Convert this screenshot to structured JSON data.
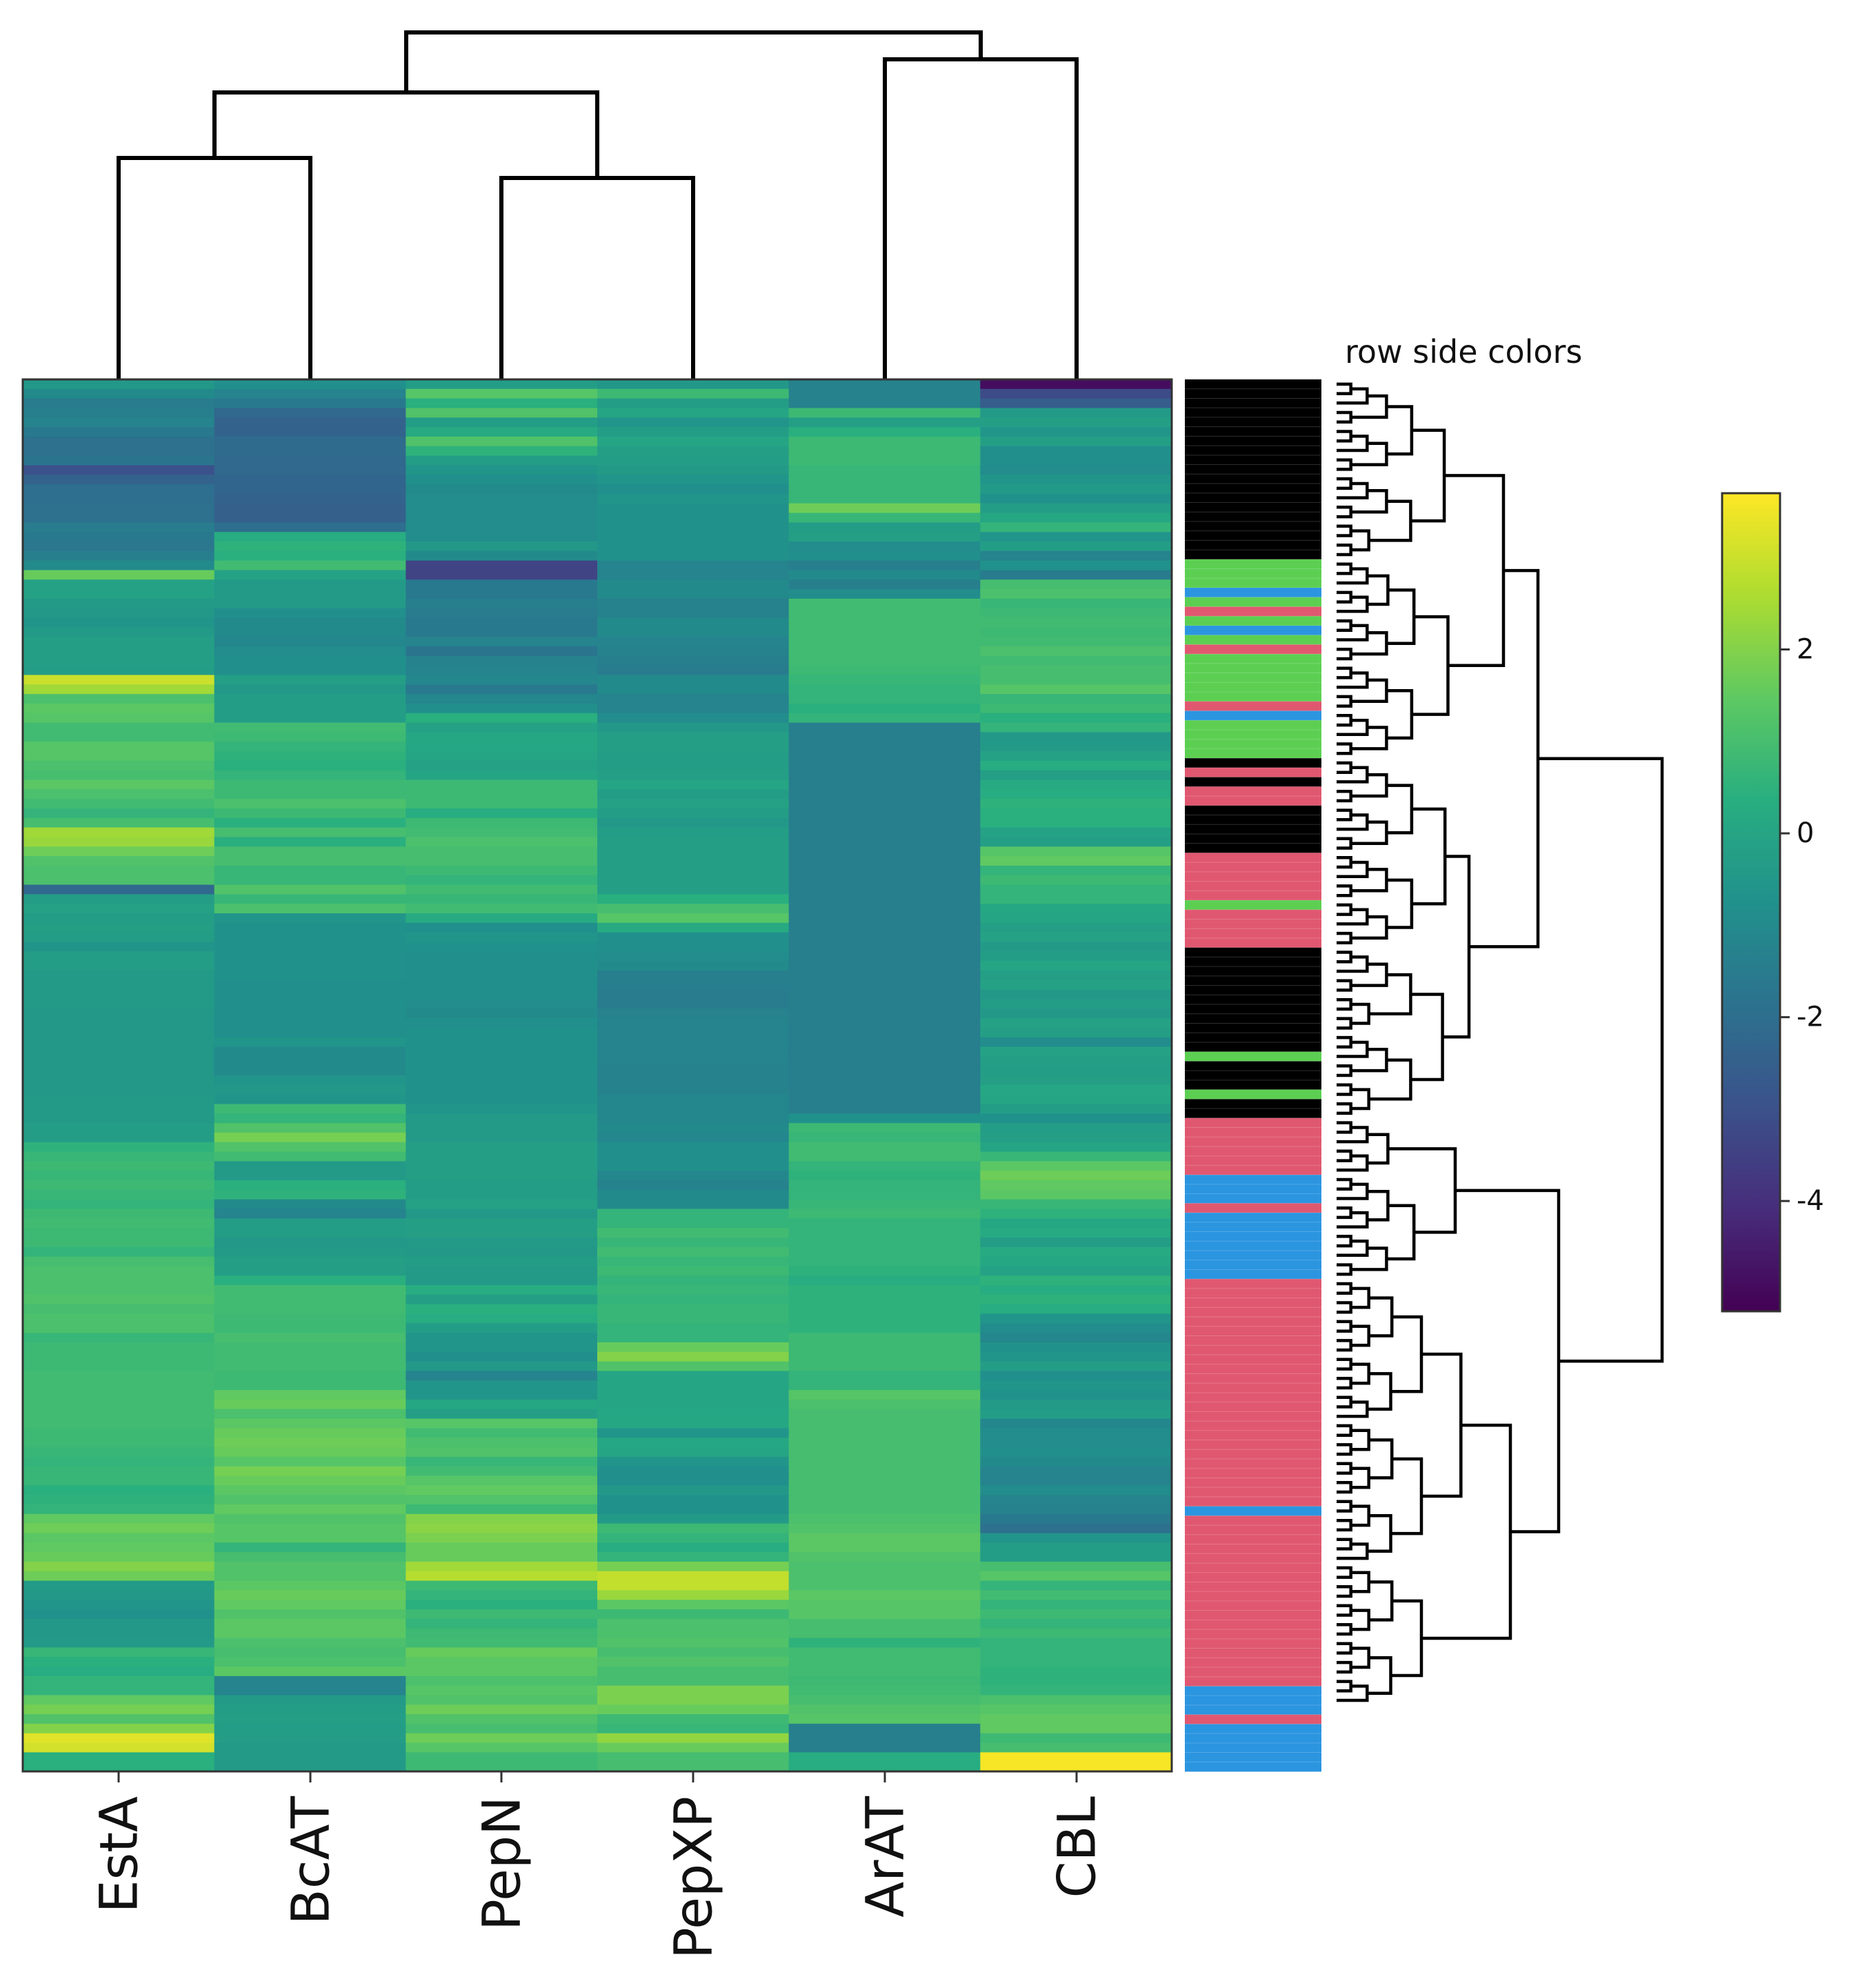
{
  "chart_data": {
    "type": "heatmap",
    "title": "",
    "columns": [
      "EstA",
      "BcAT",
      "PepN",
      "PepXP",
      "ArAT",
      "CBL"
    ],
    "colorbar": {
      "ticks": [
        2,
        0,
        -2,
        -4
      ],
      "tick_labels": [
        "2",
        "0",
        "-2",
        "-4"
      ],
      "range": [
        -5.2,
        3.7
      ],
      "colormap": "viridis"
    },
    "row_side_colors_label": "row side colors",
    "row_side_palette": {
      "black": "#000000",
      "green": "#5ccf52",
      "blue": "#2b95e0",
      "red": "#e05870"
    },
    "row_side_colors": [
      "black",
      "black",
      "black",
      "black",
      "black",
      "black",
      "black",
      "black",
      "black",
      "black",
      "black",
      "black",
      "black",
      "black",
      "black",
      "black",
      "black",
      "black",
      "black",
      "green",
      "green",
      "green",
      "blue",
      "green",
      "red",
      "green",
      "blue",
      "green",
      "red",
      "green",
      "green",
      "green",
      "green",
      "green",
      "red",
      "blue",
      "green",
      "green",
      "green",
      "green",
      "black",
      "red",
      "black",
      "red",
      "red",
      "black",
      "black",
      "black",
      "black",
      "black",
      "red",
      "red",
      "red",
      "red",
      "red",
      "green",
      "red",
      "red",
      "red",
      "red",
      "black",
      "black",
      "black",
      "black",
      "black",
      "black",
      "black",
      "black",
      "black",
      "black",
      "black",
      "green",
      "black",
      "black",
      "black",
      "green",
      "black",
      "black",
      "red",
      "red",
      "red",
      "red",
      "red",
      "red",
      "blue",
      "blue",
      "blue",
      "red",
      "blue",
      "blue",
      "blue",
      "blue",
      "blue",
      "blue",
      "blue",
      "red",
      "red",
      "red",
      "red",
      "red",
      "red",
      "red",
      "red",
      "red",
      "red",
      "red",
      "red",
      "red",
      "red",
      "red",
      "red",
      "red",
      "red",
      "red",
      "red",
      "red",
      "red",
      "red",
      "red",
      "blue",
      "red",
      "red",
      "red",
      "red",
      "red",
      "red",
      "red",
      "red",
      "red",
      "red",
      "red",
      "red",
      "red",
      "red",
      "red",
      "red",
      "red",
      "red",
      "blue",
      "blue",
      "blue",
      "red",
      "blue",
      "blue",
      "blue",
      "blue",
      "blue"
    ],
    "row_values": [
      [
        -0.5,
        -0.8,
        -0.3,
        -0.5,
        -1.3,
        -4.9
      ],
      [
        -1.0,
        -1.2,
        1.3,
        0.8,
        -1.3,
        -3.2
      ],
      [
        -1.5,
        -1.6,
        0.4,
        -0.3,
        -1.3,
        -2.6
      ],
      [
        -1.4,
        -2.2,
        1.2,
        0.0,
        0.8,
        -0.4
      ],
      [
        -1.2,
        -2.4,
        -0.3,
        -0.6,
        -0.2,
        -0.2
      ],
      [
        -1.6,
        -2.4,
        0.2,
        -0.3,
        0.4,
        -0.6
      ],
      [
        -1.9,
        -2.1,
        1.2,
        0.0,
        0.8,
        -0.2
      ],
      [
        -1.9,
        -2.1,
        0.5,
        -0.2,
        0.8,
        -0.8
      ],
      [
        -1.8,
        -2.2,
        -0.3,
        -0.3,
        0.8,
        -0.8
      ],
      [
        -3.0,
        -2.2,
        -0.6,
        -0.4,
        0.7,
        -0.9
      ],
      [
        -2.4,
        -2.3,
        -0.8,
        -0.6,
        0.7,
        -0.6
      ],
      [
        -2.0,
        -2.3,
        -1.0,
        -0.8,
        0.7,
        -0.4
      ],
      [
        -2.0,
        -2.4,
        -0.9,
        -0.6,
        0.7,
        -0.7
      ],
      [
        -1.9,
        -2.5,
        -0.9,
        -0.7,
        1.7,
        -0.3
      ],
      [
        -1.9,
        -2.5,
        -0.9,
        -0.7,
        0.7,
        0.1
      ],
      [
        -1.5,
        -2.0,
        -0.9,
        -0.7,
        -0.3,
        0.6
      ],
      [
        -1.6,
        0.3,
        -0.9,
        -0.7,
        -0.2,
        -0.6
      ],
      [
        -1.7,
        0.5,
        -0.5,
        -0.7,
        -0.9,
        -0.3
      ],
      [
        -1.4,
        0.4,
        -1.0,
        -0.7,
        -0.8,
        -1.2
      ],
      [
        -1.0,
        0.9,
        -3.4,
        -1.2,
        -1.4,
        -0.7
      ],
      [
        1.6,
        -0.1,
        -3.4,
        -1.2,
        -1.0,
        -1.5
      ],
      [
        -0.1,
        -0.4,
        -1.6,
        -1.0,
        -1.4,
        1.0
      ],
      [
        -0.1,
        -0.4,
        -1.6,
        -1.0,
        -0.9,
        1.1
      ],
      [
        -0.4,
        -0.4,
        -1.4,
        -1.3,
        0.9,
        0.7
      ],
      [
        -0.5,
        -0.8,
        -1.5,
        -1.3,
        0.9,
        0.8
      ],
      [
        -0.6,
        -1.0,
        -1.6,
        -1.0,
        0.9,
        0.9
      ],
      [
        -0.4,
        -1.0,
        -1.6,
        -1.0,
        0.9,
        0.8
      ],
      [
        -0.2,
        -1.1,
        -1.2,
        -1.2,
        0.9,
        0.9
      ],
      [
        -0.2,
        -0.9,
        -1.8,
        -1.3,
        0.9,
        1.1
      ],
      [
        -0.2,
        -0.8,
        -1.3,
        -1.4,
        0.9,
        0.9
      ],
      [
        -0.3,
        -0.8,
        -1.2,
        -1.5,
        0.8,
        1.0
      ],
      [
        3.0,
        -0.2,
        -1.1,
        -1.0,
        0.7,
        1.0
      ],
      [
        2.4,
        -0.5,
        -1.6,
        -1.0,
        0.6,
        1.3
      ],
      [
        1.1,
        -0.3,
        -1.1,
        -1.2,
        0.6,
        0.7
      ],
      [
        1.4,
        -0.3,
        -0.8,
        -1.2,
        0.4,
        0.8
      ],
      [
        1.3,
        -0.3,
        0.4,
        -0.9,
        0.6,
        0.4
      ],
      [
        0.9,
        0.9,
        -0.1,
        -0.5,
        -1.4,
        0.6
      ],
      [
        0.9,
        0.8,
        0.1,
        -0.2,
        -1.4,
        -0.5
      ],
      [
        1.3,
        0.6,
        0.1,
        -0.2,
        -1.4,
        -0.4
      ],
      [
        1.3,
        0.5,
        0.0,
        -0.3,
        -1.4,
        -0.1
      ],
      [
        1.1,
        0.4,
        -0.1,
        -0.3,
        -1.4,
        0.3
      ],
      [
        1.0,
        0.6,
        0.0,
        -0.2,
        -1.4,
        -0.2
      ],
      [
        1.4,
        0.8,
        0.8,
        0.0,
        -1.4,
        0.2
      ],
      [
        1.1,
        0.8,
        0.8,
        -0.3,
        -1.4,
        0.3
      ],
      [
        0.9,
        1.1,
        0.8,
        -0.1,
        -1.4,
        0.5
      ],
      [
        0.6,
        0.8,
        0.3,
        -0.3,
        -1.4,
        0.4
      ],
      [
        1.0,
        0.4,
        0.8,
        -0.5,
        -1.4,
        0.4
      ],
      [
        2.4,
        1.0,
        0.9,
        -0.3,
        -1.4,
        -0.1
      ],
      [
        2.3,
        0.4,
        1.1,
        -0.2,
        -1.4,
        -0.2
      ],
      [
        1.7,
        1.0,
        1.0,
        -0.2,
        -1.4,
        1.3
      ],
      [
        1.2,
        1.0,
        1.0,
        -0.2,
        -1.4,
        1.5
      ],
      [
        1.1,
        0.7,
        0.8,
        -0.2,
        -1.4,
        0.6
      ],
      [
        1.1,
        0.7,
        0.6,
        -0.2,
        -1.4,
        0.8
      ],
      [
        -2.2,
        1.2,
        0.9,
        -0.2,
        -1.4,
        0.6
      ],
      [
        -0.3,
        0.7,
        0.7,
        0.4,
        -1.4,
        0.6
      ],
      [
        -0.1,
        1.1,
        0.9,
        1.0,
        -1.4,
        0.1
      ],
      [
        -0.3,
        -0.6,
        0.2,
        1.3,
        -1.4,
        0.0
      ],
      [
        -0.2,
        -0.7,
        -0.8,
        0.2,
        -1.4,
        -0.2
      ],
      [
        -0.3,
        -0.7,
        -0.6,
        -0.8,
        -1.4,
        -0.1
      ],
      [
        -0.6,
        -0.7,
        -0.7,
        -0.8,
        -1.4,
        -0.4
      ],
      [
        -0.3,
        -0.7,
        -0.8,
        -0.9,
        -1.4,
        -0.3
      ],
      [
        -0.3,
        -0.7,
        -0.8,
        -1.0,
        -1.4,
        0.0
      ],
      [
        -0.4,
        -0.7,
        -0.8,
        -1.4,
        -1.4,
        -0.2
      ],
      [
        -0.4,
        -0.8,
        -0.8,
        -1.4,
        -1.4,
        -0.1
      ],
      [
        -0.4,
        -0.8,
        -0.8,
        -1.5,
        -1.4,
        -0.5
      ],
      [
        -0.4,
        -0.8,
        -0.9,
        -1.5,
        -1.4,
        -0.3
      ],
      [
        -0.5,
        -0.8,
        -1.0,
        -1.3,
        -1.4,
        -0.5
      ],
      [
        -0.5,
        -0.8,
        -0.8,
        -1.2,
        -1.4,
        -0.1
      ],
      [
        -0.5,
        -0.8,
        -0.7,
        -1.2,
        -1.4,
        -0.2
      ],
      [
        -0.5,
        -0.6,
        -0.7,
        -1.2,
        -1.4,
        -0.9
      ],
      [
        -0.5,
        -1.0,
        -0.7,
        -1.2,
        -1.4,
        -0.1
      ],
      [
        -0.5,
        -1.0,
        -0.7,
        -1.2,
        -1.4,
        -0.2
      ],
      [
        -0.5,
        -1.0,
        -0.7,
        -1.3,
        -1.4,
        -0.3
      ],
      [
        -0.5,
        -0.6,
        -0.7,
        -1.3,
        -1.4,
        -0.2
      ],
      [
        -0.5,
        -0.5,
        -0.7,
        -1.3,
        -1.4,
        0.1
      ],
      [
        -0.4,
        -0.6,
        -0.7,
        -1.1,
        -1.4,
        0.0
      ],
      [
        -0.4,
        0.8,
        -0.6,
        -1.1,
        -1.4,
        -0.3
      ],
      [
        -0.4,
        0.6,
        -0.4,
        -1.1,
        -0.7,
        -0.7
      ],
      [
        -0.3,
        1.2,
        -0.4,
        -1.0,
        0.8,
        -0.3
      ],
      [
        -0.3,
        1.8,
        -0.4,
        -1.1,
        0.7,
        -0.2
      ],
      [
        0.5,
        1.2,
        -0.2,
        -0.8,
        0.9,
        0.0
      ],
      [
        0.7,
        0.9,
        -0.2,
        -0.8,
        0.9,
        0.7
      ],
      [
        0.8,
        -0.4,
        -0.2,
        -0.8,
        0.6,
        1.4
      ],
      [
        0.7,
        -0.4,
        -0.2,
        -1.1,
        0.5,
        1.7
      ],
      [
        0.8,
        0.4,
        -0.3,
        -1.3,
        0.6,
        1.5
      ],
      [
        0.7,
        0.5,
        -0.3,
        -1.0,
        0.6,
        1.4
      ],
      [
        0.6,
        -1.0,
        -0.1,
        -1.0,
        0.7,
        0.7
      ],
      [
        0.8,
        -1.2,
        -0.5,
        0.6,
        0.8,
        0.5
      ],
      [
        0.9,
        -0.3,
        -0.2,
        0.6,
        0.6,
        0.1
      ],
      [
        0.8,
        -0.3,
        -0.2,
        0.9,
        0.6,
        0.2
      ],
      [
        0.8,
        -0.5,
        -0.4,
        0.7,
        0.6,
        -0.3
      ],
      [
        0.6,
        -0.4,
        -0.5,
        0.9,
        0.6,
        0.2
      ],
      [
        1.0,
        -0.2,
        -0.3,
        0.7,
        0.6,
        0.1
      ],
      [
        1.1,
        -0.2,
        -0.4,
        0.8,
        0.5,
        -0.1
      ],
      [
        1.1,
        0.4,
        -0.4,
        0.6,
        0.3,
        0.5
      ],
      [
        1.1,
        0.9,
        0.3,
        0.7,
        0.5,
        0.3
      ],
      [
        1.2,
        0.9,
        -0.2,
        0.6,
        0.5,
        0.5
      ],
      [
        1.0,
        0.9,
        0.4,
        0.7,
        0.5,
        0.3
      ],
      [
        1.1,
        0.8,
        0.3,
        0.7,
        0.5,
        -0.6
      ],
      [
        1.1,
        0.8,
        -0.3,
        0.6,
        0.5,
        -0.9
      ],
      [
        0.7,
        1.0,
        -0.6,
        0.6,
        0.8,
        -1.1
      ],
      [
        0.8,
        0.9,
        -0.6,
        1.6,
        0.8,
        -0.7
      ],
      [
        0.8,
        0.9,
        -0.8,
        2.0,
        0.8,
        -0.6
      ],
      [
        0.8,
        0.9,
        -0.5,
        1.2,
        0.8,
        -0.3
      ],
      [
        0.9,
        0.8,
        -1.2,
        0.0,
        0.6,
        -0.8
      ],
      [
        0.9,
        0.8,
        -0.6,
        0.0,
        0.6,
        -0.6
      ],
      [
        0.9,
        1.5,
        -0.6,
        0.0,
        1.3,
        -0.7
      ],
      [
        0.9,
        1.6,
        0.1,
        0.0,
        1.1,
        -0.4
      ],
      [
        0.9,
        1.1,
        -0.2,
        0.1,
        1.0,
        -0.3
      ],
      [
        0.9,
        1.4,
        1.3,
        0.1,
        1.0,
        -1.1
      ],
      [
        0.8,
        1.6,
        0.9,
        -0.6,
        1.0,
        -0.9
      ],
      [
        0.8,
        1.7,
        1.1,
        0.1,
        1.0,
        -0.9
      ],
      [
        0.7,
        1.6,
        1.2,
        0.0,
        1.0,
        -0.8
      ],
      [
        0.6,
        1.3,
        0.7,
        -0.6,
        1.0,
        -1.0
      ],
      [
        0.7,
        1.8,
        0.9,
        -0.8,
        1.0,
        -1.2
      ],
      [
        0.7,
        1.6,
        1.3,
        -0.8,
        1.0,
        -1.2
      ],
      [
        0.4,
        1.4,
        1.5,
        -0.5,
        1.0,
        -0.9
      ],
      [
        0.5,
        1.2,
        1.2,
        -0.7,
        1.0,
        -1.2
      ],
      [
        0.6,
        1.5,
        0.8,
        -0.7,
        1.0,
        -1.3
      ],
      [
        1.5,
        1.2,
        2.0,
        -0.4,
        1.1,
        -1.6
      ],
      [
        1.7,
        1.3,
        2.1,
        0.8,
        1.2,
        -1.9
      ],
      [
        1.4,
        1.3,
        1.9,
        0.6,
        1.4,
        -0.6
      ],
      [
        1.5,
        0.6,
        1.6,
        0.3,
        1.4,
        -0.3
      ],
      [
        1.6,
        1.0,
        1.6,
        0.6,
        1.2,
        -0.3
      ],
      [
        2.0,
        1.2,
        2.4,
        1.8,
        1.1,
        1.0
      ],
      [
        1.7,
        1.2,
        2.7,
        2.9,
        1.1,
        1.3
      ],
      [
        -0.4,
        1.4,
        0.8,
        2.9,
        1.1,
        0.6
      ],
      [
        -0.5,
        1.6,
        0.6,
        2.3,
        1.4,
        0.9
      ],
      [
        -0.6,
        1.5,
        0.4,
        1.4,
        1.3,
        0.6
      ],
      [
        -0.7,
        1.2,
        0.8,
        0.8,
        1.3,
        0.8
      ],
      [
        -0.5,
        1.4,
        0.6,
        1.1,
        1.0,
        0.6
      ],
      [
        -0.5,
        1.4,
        0.8,
        1.1,
        1.0,
        0.8
      ],
      [
        -0.4,
        1.1,
        0.9,
        1.2,
        0.5,
        0.6
      ],
      [
        0.7,
        1.0,
        1.6,
        1.0,
        0.9,
        0.6
      ],
      [
        0.4,
        1.1,
        1.4,
        1.2,
        0.9,
        0.6
      ],
      [
        0.3,
        1.4,
        1.4,
        1.0,
        0.9,
        0.5
      ],
      [
        0.6,
        -1.2,
        1.1,
        1.0,
        0.8,
        0.5
      ],
      [
        0.6,
        -1.2,
        1.3,
        1.9,
        0.9,
        0.6
      ],
      [
        1.5,
        -0.4,
        1.2,
        1.9,
        1.0,
        1.1
      ],
      [
        1.8,
        -0.3,
        1.7,
        1.6,
        1.2,
        1.3
      ],
      [
        1.2,
        -0.2,
        1.2,
        0.8,
        1.3,
        1.5
      ],
      [
        2.0,
        -0.3,
        1.0,
        0.7,
        -1.4,
        1.5
      ],
      [
        3.3,
        -0.3,
        1.7,
        2.2,
        -1.4,
        0.8
      ],
      [
        3.1,
        -0.4,
        1.3,
        1.6,
        -1.4,
        1.0
      ],
      [
        0.4,
        -0.4,
        0.8,
        1.0,
        0.3,
        3.6
      ],
      [
        0.4,
        -0.4,
        0.8,
        1.0,
        0.3,
        3.6
      ]
    ]
  }
}
